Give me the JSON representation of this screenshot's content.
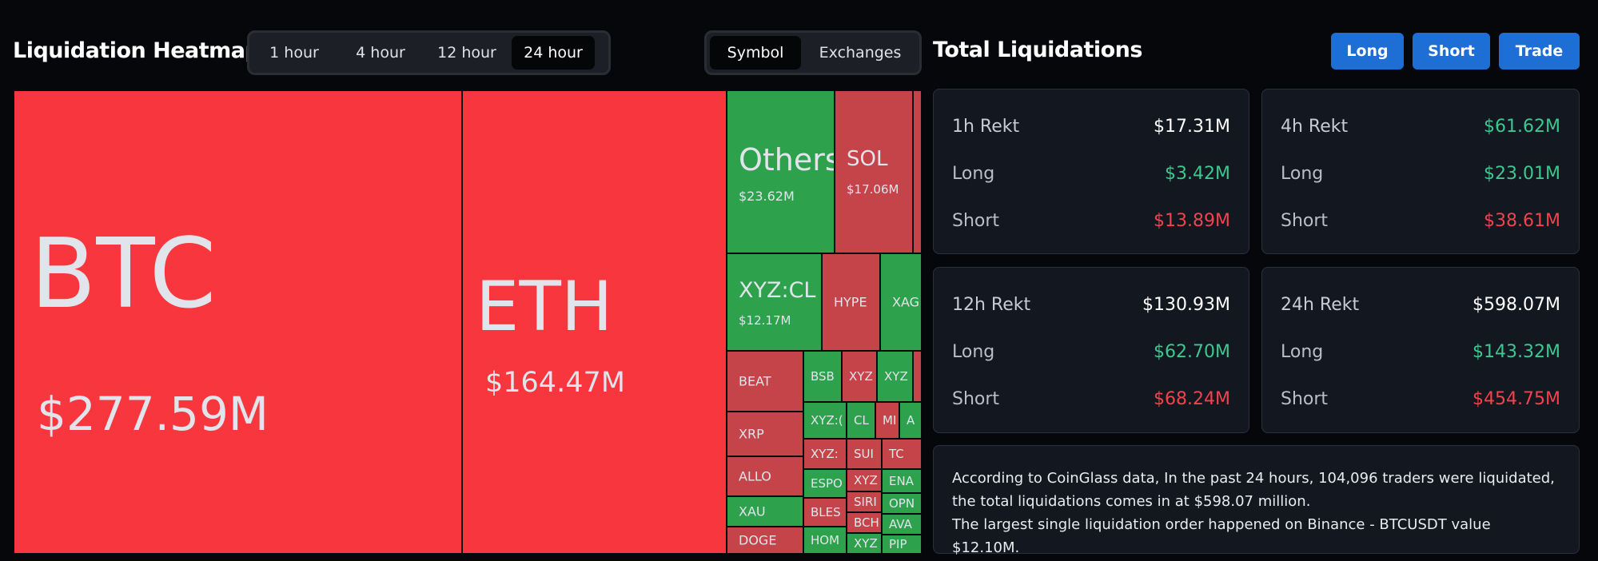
{
  "left_title": "Liquidation Heatmap",
  "right_title": "Total Liquidations",
  "timeframes": [
    "1 hour",
    "4 hour",
    "12 hour",
    "24 hour"
  ],
  "timeframe_selected": "24 hour",
  "view_modes": [
    "Symbol",
    "Exchanges"
  ],
  "view_mode_selected": "Symbol",
  "actions": {
    "long": "Long",
    "short": "Short",
    "trade": "Trade"
  },
  "heatmap": {
    "tiles": [
      {
        "symbol": "BTC",
        "value": "$277.59M"
      },
      {
        "symbol": "ETH",
        "value": "$164.47M"
      },
      {
        "symbol": "Others",
        "value": "$23.62M"
      },
      {
        "symbol": "SOL",
        "value": "$17.06M"
      },
      {
        "symbol": "XYZ:CL",
        "value": "$12.17M"
      },
      {
        "symbol": "HYPE"
      },
      {
        "symbol": "XAG"
      },
      {
        "symbol": "BEAT"
      },
      {
        "symbol": "BSB"
      },
      {
        "symbol": "XYZ"
      },
      {
        "symbol": "XYZ"
      },
      {
        "symbol": "XRP"
      },
      {
        "symbol": "XYZ:("
      },
      {
        "symbol": "CL"
      },
      {
        "symbol": "MI"
      },
      {
        "symbol": "A"
      },
      {
        "symbol": "ALLO"
      },
      {
        "symbol": "XYZ:"
      },
      {
        "symbol": "SUI"
      },
      {
        "symbol": "TC"
      },
      {
        "symbol": "ESPO"
      },
      {
        "symbol": "XYZ"
      },
      {
        "symbol": "ENA"
      },
      {
        "symbol": "XAU"
      },
      {
        "symbol": "BLES"
      },
      {
        "symbol": "SIRI"
      },
      {
        "symbol": "OPN"
      },
      {
        "symbol": "BCH"
      },
      {
        "symbol": "AVA"
      },
      {
        "symbol": "DOGE"
      },
      {
        "symbol": "HOM"
      },
      {
        "symbol": "XYZ"
      },
      {
        "symbol": "PIP"
      }
    ]
  },
  "stats": {
    "h1": {
      "label": "1h Rekt",
      "total": "$17.31M",
      "long_label": "Long",
      "long": "$3.42M",
      "short_label": "Short",
      "short": "$13.89M"
    },
    "h4": {
      "label": "4h Rekt",
      "total": "$61.62M",
      "long_label": "Long",
      "long": "$23.01M",
      "short_label": "Short",
      "short": "$38.61M"
    },
    "h12": {
      "label": "12h Rekt",
      "total": "$130.93M",
      "long_label": "Long",
      "long": "$62.70M",
      "short_label": "Short",
      "short": "$68.24M"
    },
    "h24": {
      "label": "24h Rekt",
      "total": "$598.07M",
      "long_label": "Long",
      "long": "$143.32M",
      "short_label": "Short",
      "short": "$454.75M"
    }
  },
  "summary": {
    "line1": "According to CoinGlass data, In the past 24 hours, 104,096 traders were liquidated, the total liquidations comes in at $598.07 million.",
    "line2": "The largest single liquidation order happened on Binance - BTCUSDT value $12.10M."
  },
  "colors": {
    "long_green": "#3cc88f",
    "short_red": "#f2424e",
    "accent_blue": "#1d6fd6"
  }
}
